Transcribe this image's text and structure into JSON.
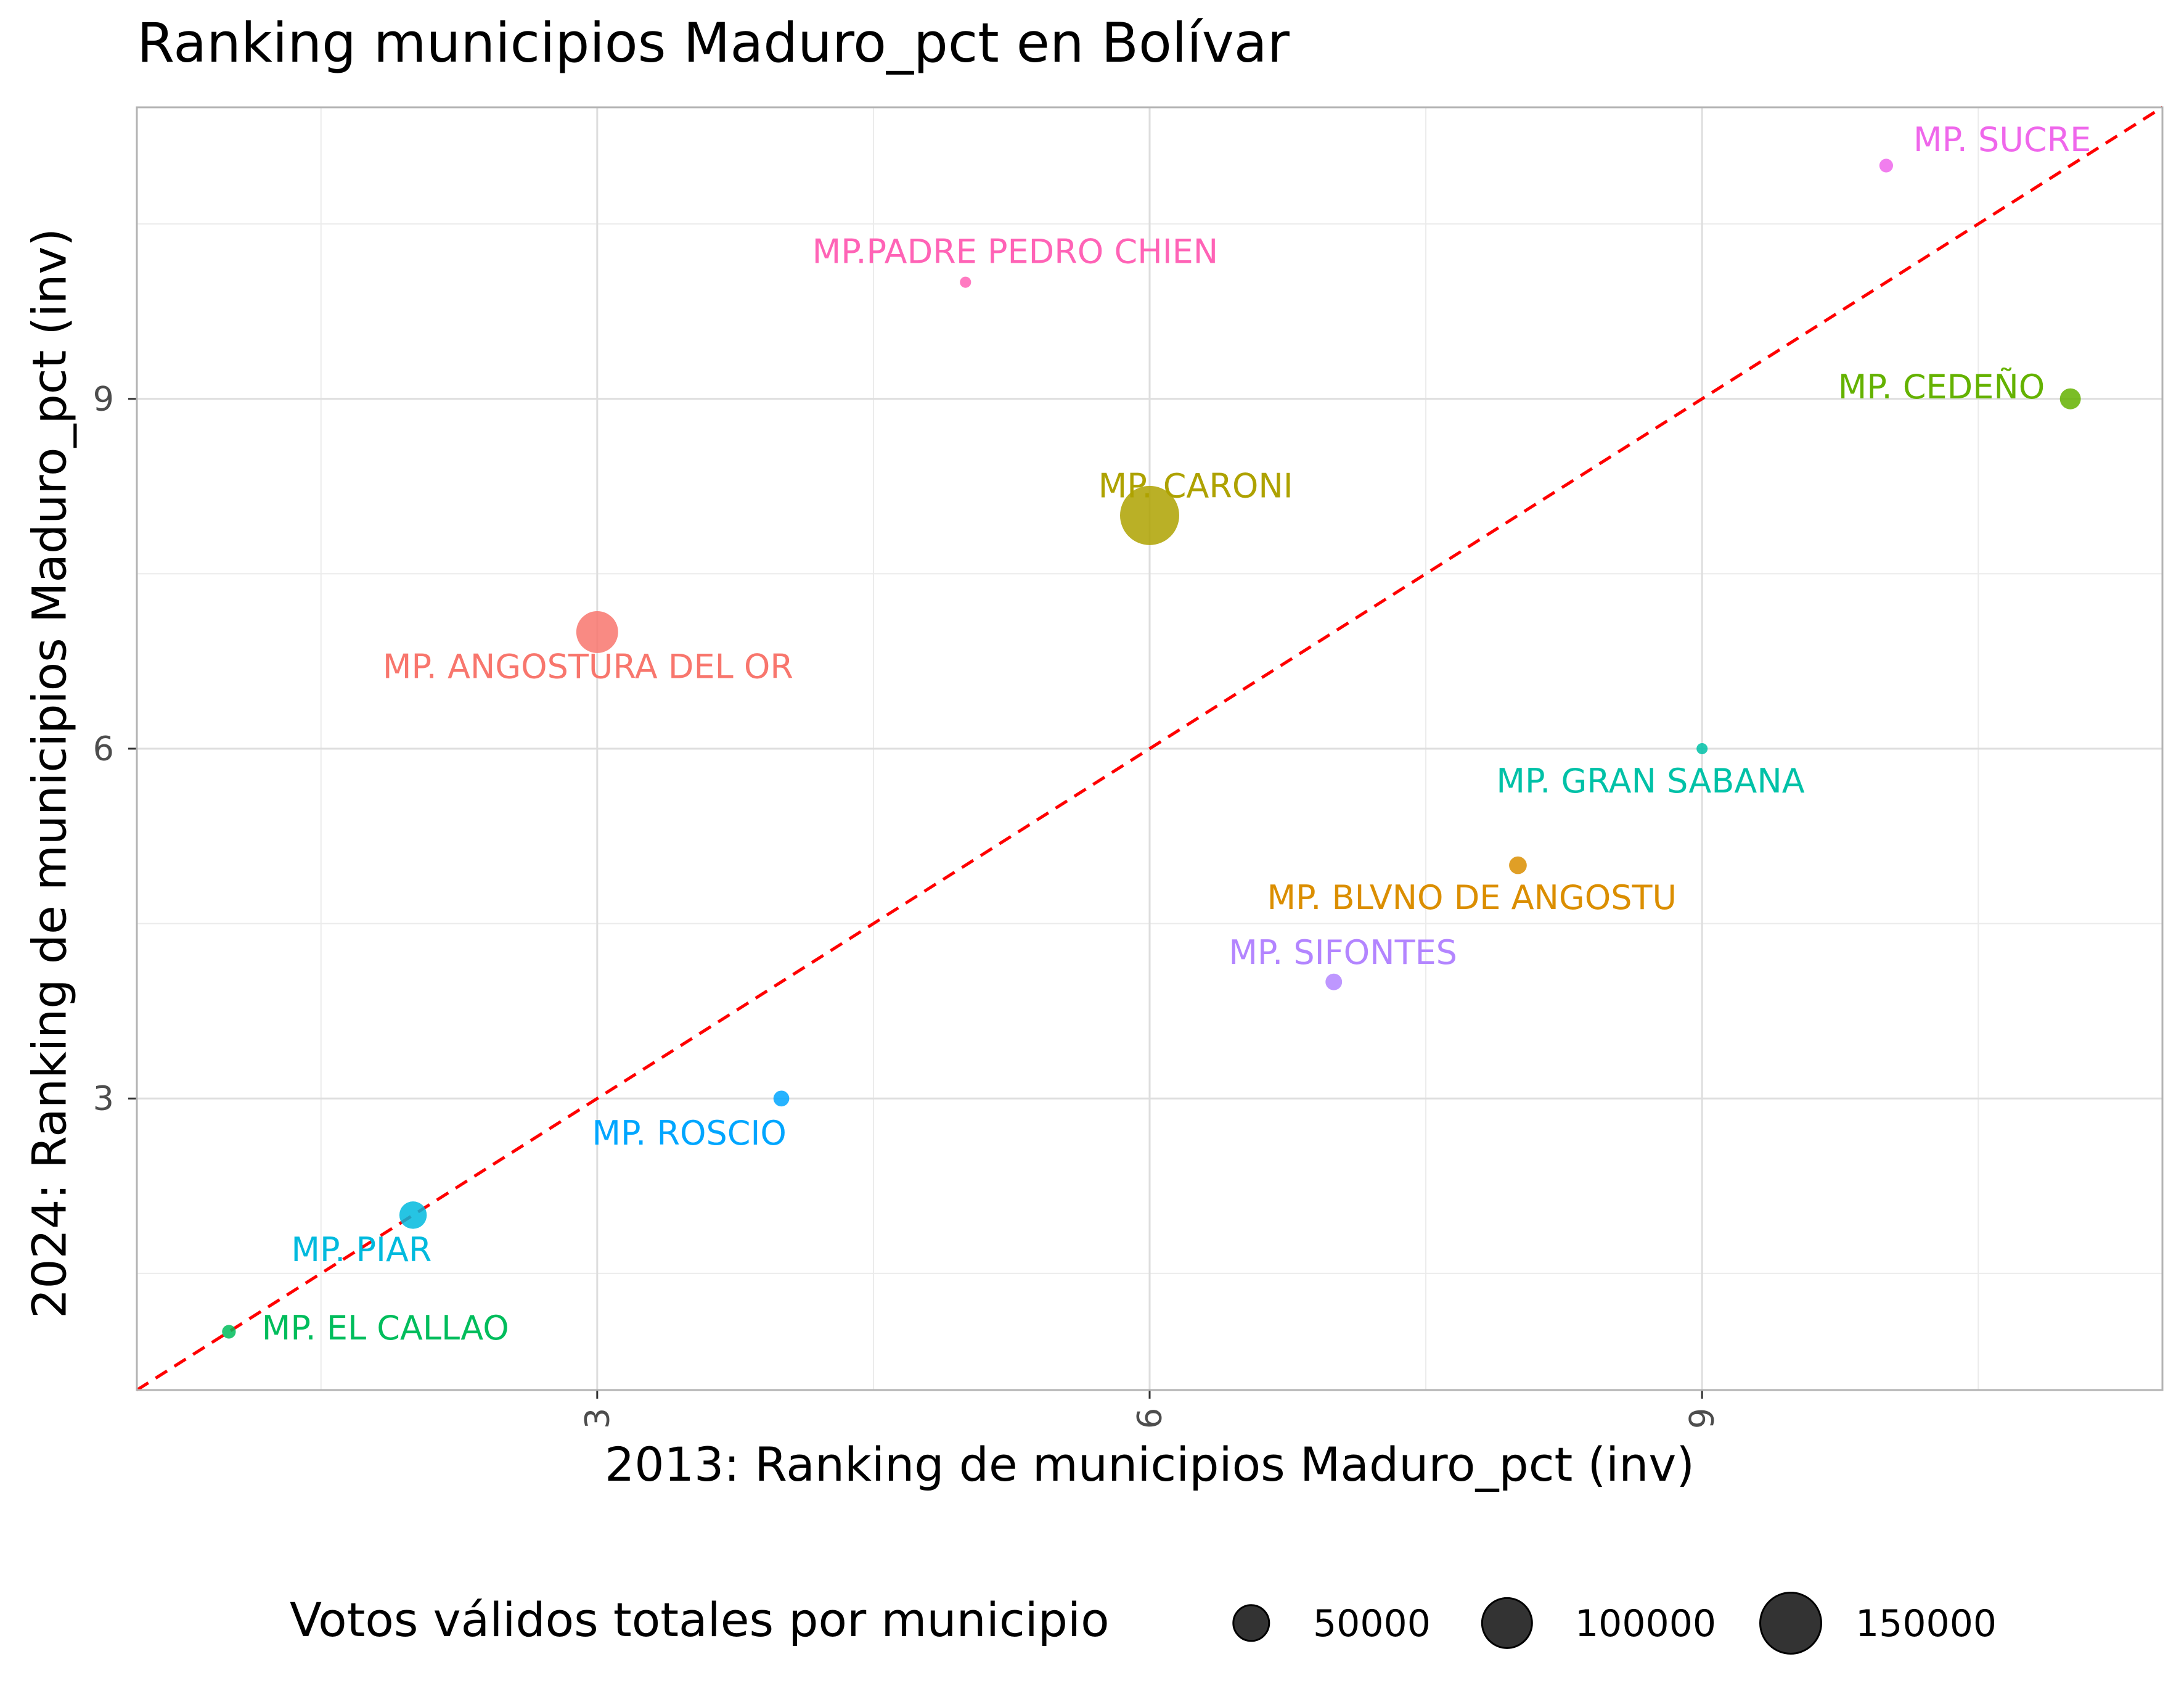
{
  "chart_data": {
    "type": "scatter",
    "title": "Ranking municipios Maduro_pct en Bolívar",
    "xlabel": "2013: Ranking de municipios Maduro_pct (inv)",
    "ylabel": "2024: Ranking de municipios Maduro_pct (inv)",
    "xlim": [
      0.5,
      11.5
    ],
    "ylim": [
      0.5,
      11.5
    ],
    "x_ticks": [
      "3",
      "6",
      "9"
    ],
    "y_ticks": [
      "3",
      "6",
      "9"
    ],
    "grid": true,
    "reference_line": {
      "slope": 1,
      "intercept": 0,
      "color": "#ff0000",
      "style": "dashed"
    },
    "legend": {
      "title": "Votos válidos totales por municipio",
      "position": "bottom",
      "sizes": [
        50000,
        100000,
        150000
      ],
      "labels": [
        "50000",
        "100000",
        "150000"
      ]
    },
    "points": [
      {
        "label": "MP. ANGOSTURA DEL OR",
        "x": 3,
        "y": 7,
        "votes": 140000,
        "color": "#F8766D"
      },
      {
        "label": "MP. BLVNO DE ANGOSTU",
        "x": 8,
        "y": 5,
        "votes": 25000,
        "color": "#DB8E00"
      },
      {
        "label": "MP. CARONI",
        "x": 6,
        "y": 8,
        "votes": 280000,
        "color": "#AEA200"
      },
      {
        "label": "MP. CEDEÑO",
        "x": 11,
        "y": 9,
        "votes": 35000,
        "color": "#64B200"
      },
      {
        "label": "MP. EL CALLAO",
        "x": 1,
        "y": 1,
        "votes": 15000,
        "color": "#00BD5C"
      },
      {
        "label": "MP. GRAN SABANA",
        "x": 9,
        "y": 6,
        "votes": 5000,
        "color": "#00C1A7"
      },
      {
        "label": "MP. PIAR",
        "x": 2,
        "y": 2,
        "votes": 60000,
        "color": "#00BADE"
      },
      {
        "label": "MP. ROSCIO",
        "x": 4,
        "y": 3,
        "votes": 20000,
        "color": "#00A6FF"
      },
      {
        "label": "MP. SIFONTES",
        "x": 7,
        "y": 4,
        "votes": 22000,
        "color": "#B385FF"
      },
      {
        "label": "MP. SUCRE",
        "x": 10,
        "y": 11,
        "votes": 15000,
        "color": "#EF67EB"
      },
      {
        "label": "MP.PADRE PEDRO CHIEN",
        "x": 5,
        "y": 10,
        "votes": 10000,
        "color": "#FF63B6"
      }
    ]
  }
}
